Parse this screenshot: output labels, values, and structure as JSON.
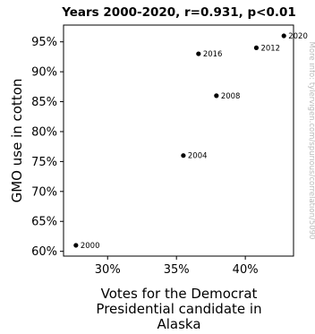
{
  "chart_data": {
    "type": "scatter",
    "title": "Years 2000-2020, r=0.931, p<0.01",
    "xlabel": [
      "Votes for the Democrat",
      "Presidential candidate in",
      "Alaska"
    ],
    "ylabel": "GMO use in cotton",
    "xlim": [
      26.8,
      43.5
    ],
    "ylim": [
      59.2,
      97.8
    ],
    "x_ticks": [
      30,
      35,
      40
    ],
    "x_tick_labels": [
      "30%",
      "35%",
      "40%"
    ],
    "y_ticks": [
      60,
      65,
      70,
      75,
      80,
      85,
      90,
      95
    ],
    "y_tick_labels": [
      "60%",
      "65%",
      "70%",
      "75%",
      "80%",
      "85%",
      "90%",
      "95%"
    ],
    "grid": false,
    "points": [
      {
        "label": "2000",
        "x": 27.7,
        "y": 61
      },
      {
        "label": "2004",
        "x": 35.5,
        "y": 76
      },
      {
        "label": "2008",
        "x": 37.9,
        "y": 86
      },
      {
        "label": "2012",
        "x": 40.8,
        "y": 94
      },
      {
        "label": "2016",
        "x": 36.6,
        "y": 93
      },
      {
        "label": "2020",
        "x": 42.8,
        "y": 96
      }
    ],
    "watermark": "More info: tylervigen.com/spurious/correlation/5090"
  }
}
